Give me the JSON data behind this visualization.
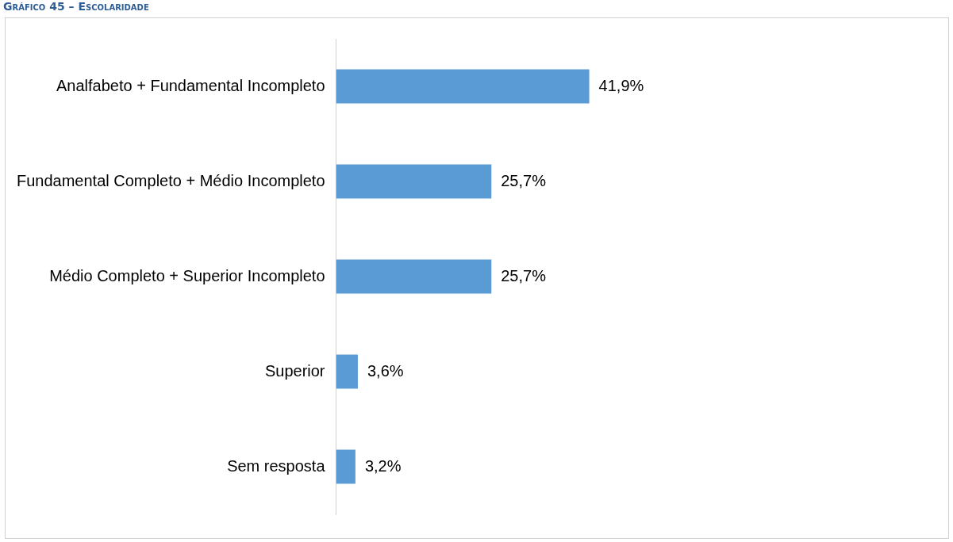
{
  "chart_data": {
    "type": "bar",
    "orientation": "horizontal",
    "title": "Gráfico 45 – Escolaridade",
    "categories": [
      "Analfabeto + Fundamental Incompleto",
      "Fundamental Completo + Médio Incompleto",
      "Médio Completo + Superior Incompleto",
      "Superior",
      "Sem resposta"
    ],
    "values": [
      41.9,
      25.7,
      25.7,
      3.6,
      3.2
    ],
    "value_labels": [
      "41,9%",
      "25,7%",
      "25,7%",
      "3,6%",
      "3,2%"
    ],
    "color": "#5b9bd5"
  }
}
